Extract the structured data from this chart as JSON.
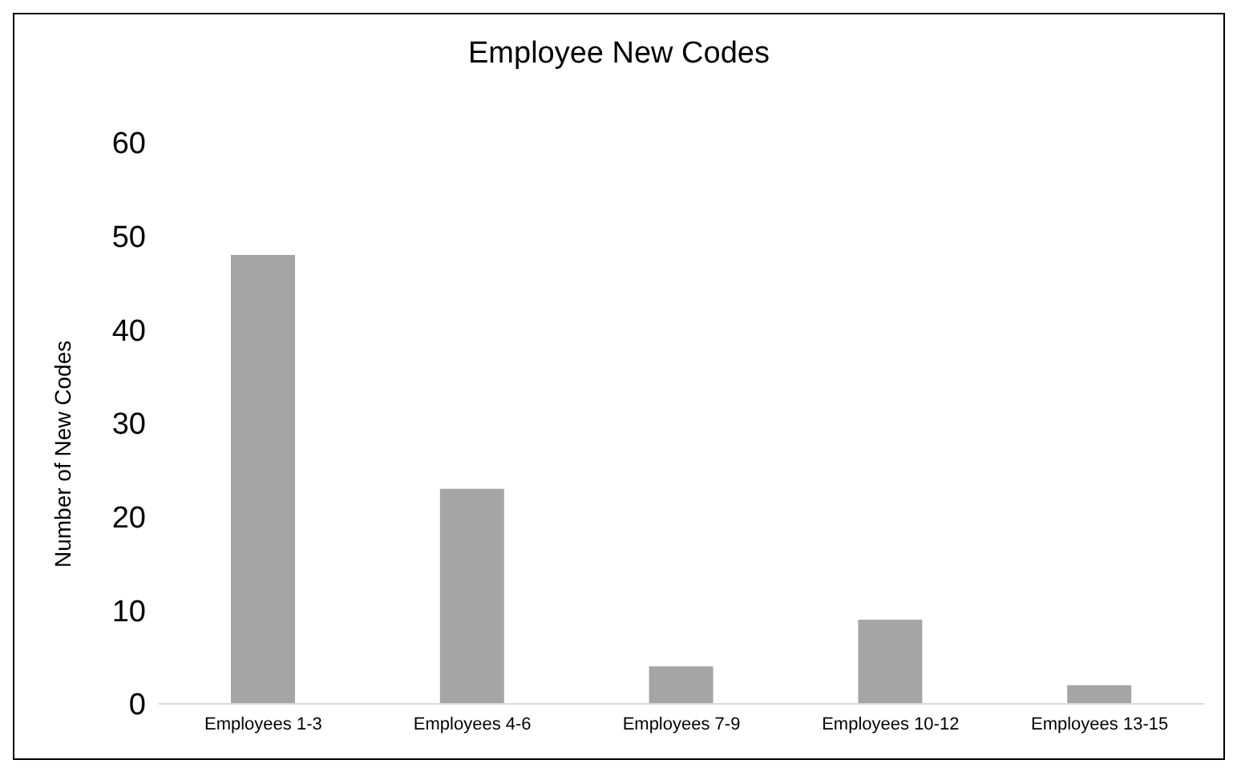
{
  "chart_data": {
    "type": "bar",
    "title": "Employee New Codes",
    "ylabel": "Number of New Codes",
    "categories": [
      "Employees 1-3",
      "Employees 4-6",
      "Employees 7-9",
      "Employees 10-12",
      "Employees 13-15"
    ],
    "values": [
      48,
      23,
      4,
      9,
      2
    ],
    "color": "#a5a5a5",
    "ylim": [
      0,
      60
    ],
    "yticks": [
      0,
      10,
      20,
      30,
      40,
      50,
      60
    ],
    "grid": false,
    "legend": false
  }
}
